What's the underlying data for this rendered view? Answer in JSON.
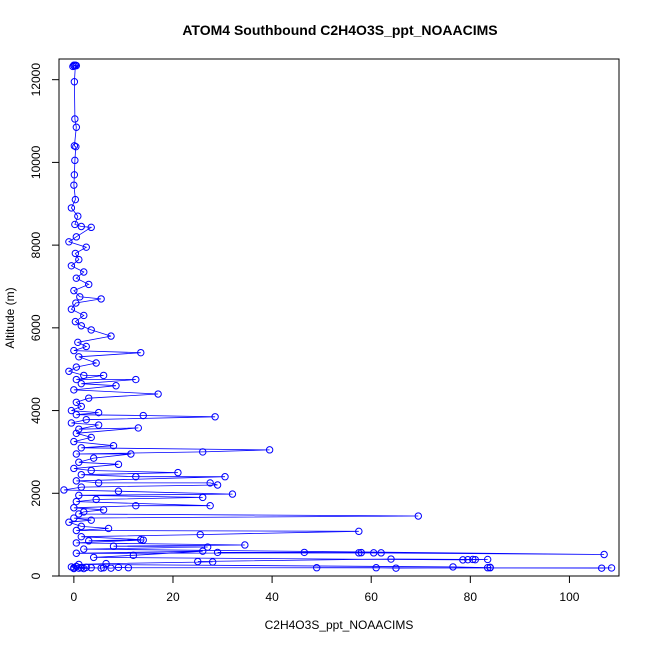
{
  "chart_data": {
    "type": "scatter",
    "title": "ATOM4 Southbound C2H4O3S_ppt_NOAACIMS",
    "xlabel": "C2H4O3S_ppt_NOAACIMS",
    "ylabel": "Altitude (m)",
    "xlim": [
      -3,
      110
    ],
    "ylim": [
      0,
      12500
    ],
    "x_ticks": [
      0,
      20,
      40,
      60,
      80,
      100
    ],
    "y_ticks": [
      0,
      2000,
      4000,
      6000,
      8000,
      10000,
      12000
    ],
    "grid": false,
    "legend": "none",
    "series": [
      {
        "color": "#0000ff",
        "marker": "open-circle",
        "line": true,
        "points": [
          [
            0.0,
            12350
          ],
          [
            0.5,
            12340
          ],
          [
            0.1,
            12330
          ],
          [
            -0.2,
            12320
          ],
          [
            0.3,
            12350
          ],
          [
            0.1,
            11950
          ],
          [
            0.2,
            11050
          ],
          [
            0.5,
            10850
          ],
          [
            0.1,
            10400
          ],
          [
            0.4,
            10380
          ],
          [
            0.2,
            10050
          ],
          [
            0.1,
            9700
          ],
          [
            0.0,
            9450
          ],
          [
            0.3,
            9100
          ],
          [
            -0.5,
            8900
          ],
          [
            0.8,
            8700
          ],
          [
            0.2,
            8500
          ],
          [
            1.5,
            8450
          ],
          [
            3.5,
            8430
          ],
          [
            0.5,
            8200
          ],
          [
            -1.0,
            8080
          ],
          [
            2.5,
            7950
          ],
          [
            0.3,
            7800
          ],
          [
            1.0,
            7650
          ],
          [
            -0.5,
            7500
          ],
          [
            2.0,
            7350
          ],
          [
            0.5,
            7200
          ],
          [
            3.0,
            7050
          ],
          [
            0.0,
            6900
          ],
          [
            1.2,
            6750
          ],
          [
            5.5,
            6700
          ],
          [
            0.4,
            6600
          ],
          [
            -0.5,
            6450
          ],
          [
            2.0,
            6300
          ],
          [
            0.3,
            6150
          ],
          [
            1.5,
            6050
          ],
          [
            3.5,
            5950
          ],
          [
            7.5,
            5800
          ],
          [
            0.8,
            5650
          ],
          [
            2.5,
            5550
          ],
          [
            0.0,
            5450
          ],
          [
            13.5,
            5400
          ],
          [
            1.0,
            5300
          ],
          [
            4.5,
            5150
          ],
          [
            0.5,
            5050
          ],
          [
            -1.0,
            4950
          ],
          [
            2.0,
            4850
          ],
          [
            6.0,
            4850
          ],
          [
            0.5,
            4750
          ],
          [
            12.5,
            4750
          ],
          [
            1.5,
            4650
          ],
          [
            8.5,
            4600
          ],
          [
            0.0,
            4500
          ],
          [
            17.0,
            4400
          ],
          [
            3.0,
            4300
          ],
          [
            0.5,
            4200
          ],
          [
            1.5,
            4100
          ],
          [
            -0.5,
            4000
          ],
          [
            5.0,
            3950
          ],
          [
            0.5,
            3900
          ],
          [
            14.0,
            3880
          ],
          [
            28.5,
            3850
          ],
          [
            2.5,
            3780
          ],
          [
            -0.5,
            3700
          ],
          [
            5.0,
            3650
          ],
          [
            1.0,
            3550
          ],
          [
            13.0,
            3580
          ],
          [
            0.5,
            3450
          ],
          [
            3.5,
            3350
          ],
          [
            0.0,
            3250
          ],
          [
            8.0,
            3150
          ],
          [
            1.5,
            3100
          ],
          [
            39.5,
            3050
          ],
          [
            26.0,
            3000
          ],
          [
            0.5,
            2950
          ],
          [
            11.5,
            2950
          ],
          [
            4.0,
            2850
          ],
          [
            1.0,
            2750
          ],
          [
            9.0,
            2700
          ],
          [
            0.0,
            2600
          ],
          [
            3.5,
            2550
          ],
          [
            21.0,
            2500
          ],
          [
            1.5,
            2450
          ],
          [
            12.5,
            2400
          ],
          [
            30.5,
            2400
          ],
          [
            0.5,
            2300
          ],
          [
            5.0,
            2250
          ],
          [
            27.5,
            2250
          ],
          [
            29.0,
            2200
          ],
          [
            1.5,
            2150
          ],
          [
            -2.0,
            2080
          ],
          [
            9.0,
            2050
          ],
          [
            32.0,
            1980
          ],
          [
            1.0,
            1950
          ],
          [
            26.0,
            1900
          ],
          [
            4.5,
            1850
          ],
          [
            0.5,
            1800
          ],
          [
            27.5,
            1700
          ],
          [
            12.5,
            1700
          ],
          [
            0.0,
            1650
          ],
          [
            6.0,
            1600
          ],
          [
            2.0,
            1550
          ],
          [
            1.0,
            1500
          ],
          [
            69.5,
            1450
          ],
          [
            0.0,
            1400
          ],
          [
            3.5,
            1350
          ],
          [
            -1.0,
            1300
          ],
          [
            1.5,
            1200
          ],
          [
            7.0,
            1150
          ],
          [
            0.5,
            1100
          ],
          [
            57.5,
            1080
          ],
          [
            25.5,
            1000
          ],
          [
            1.5,
            950
          ],
          [
            13.5,
            880
          ],
          [
            3.0,
            850
          ],
          [
            14.0,
            870
          ],
          [
            0.5,
            800
          ],
          [
            34.5,
            750
          ],
          [
            8.0,
            720
          ],
          [
            27.0,
            700
          ],
          [
            2.0,
            650
          ],
          [
            107.0,
            520
          ],
          [
            46.5,
            570
          ],
          [
            29.0,
            570
          ],
          [
            57.5,
            560
          ],
          [
            58.0,
            565
          ],
          [
            60.5,
            560
          ],
          [
            62.0,
            560
          ],
          [
            0.5,
            550
          ],
          [
            26.0,
            600
          ],
          [
            12.0,
            500
          ],
          [
            4.0,
            450
          ],
          [
            78.5,
            390
          ],
          [
            79.5,
            395
          ],
          [
            80.5,
            400
          ],
          [
            81.0,
            395
          ],
          [
            83.5,
            400
          ],
          [
            64.0,
            410
          ],
          [
            25.0,
            350
          ],
          [
            28.0,
            340
          ],
          [
            6.5,
            300
          ],
          [
            1.0,
            280
          ],
          [
            76.5,
            220
          ],
          [
            83.5,
            200
          ],
          [
            84.0,
            210
          ],
          [
            84.0,
            200
          ],
          [
            65.0,
            190
          ],
          [
            61.0,
            200
          ],
          [
            49.0,
            200
          ],
          [
            106.5,
            190
          ],
          [
            108.5,
            195
          ],
          [
            11.0,
            200
          ],
          [
            9.0,
            210
          ],
          [
            7.5,
            190
          ],
          [
            6.0,
            200
          ],
          [
            5.5,
            190
          ],
          [
            3.5,
            200
          ],
          [
            2.0,
            180
          ],
          [
            1.0,
            190
          ],
          [
            0.0,
            200
          ],
          [
            -0.5,
            220
          ],
          [
            0.5,
            230
          ],
          [
            1.5,
            200
          ],
          [
            2.5,
            210
          ],
          [
            0.0,
            180
          ]
        ]
      }
    ]
  }
}
